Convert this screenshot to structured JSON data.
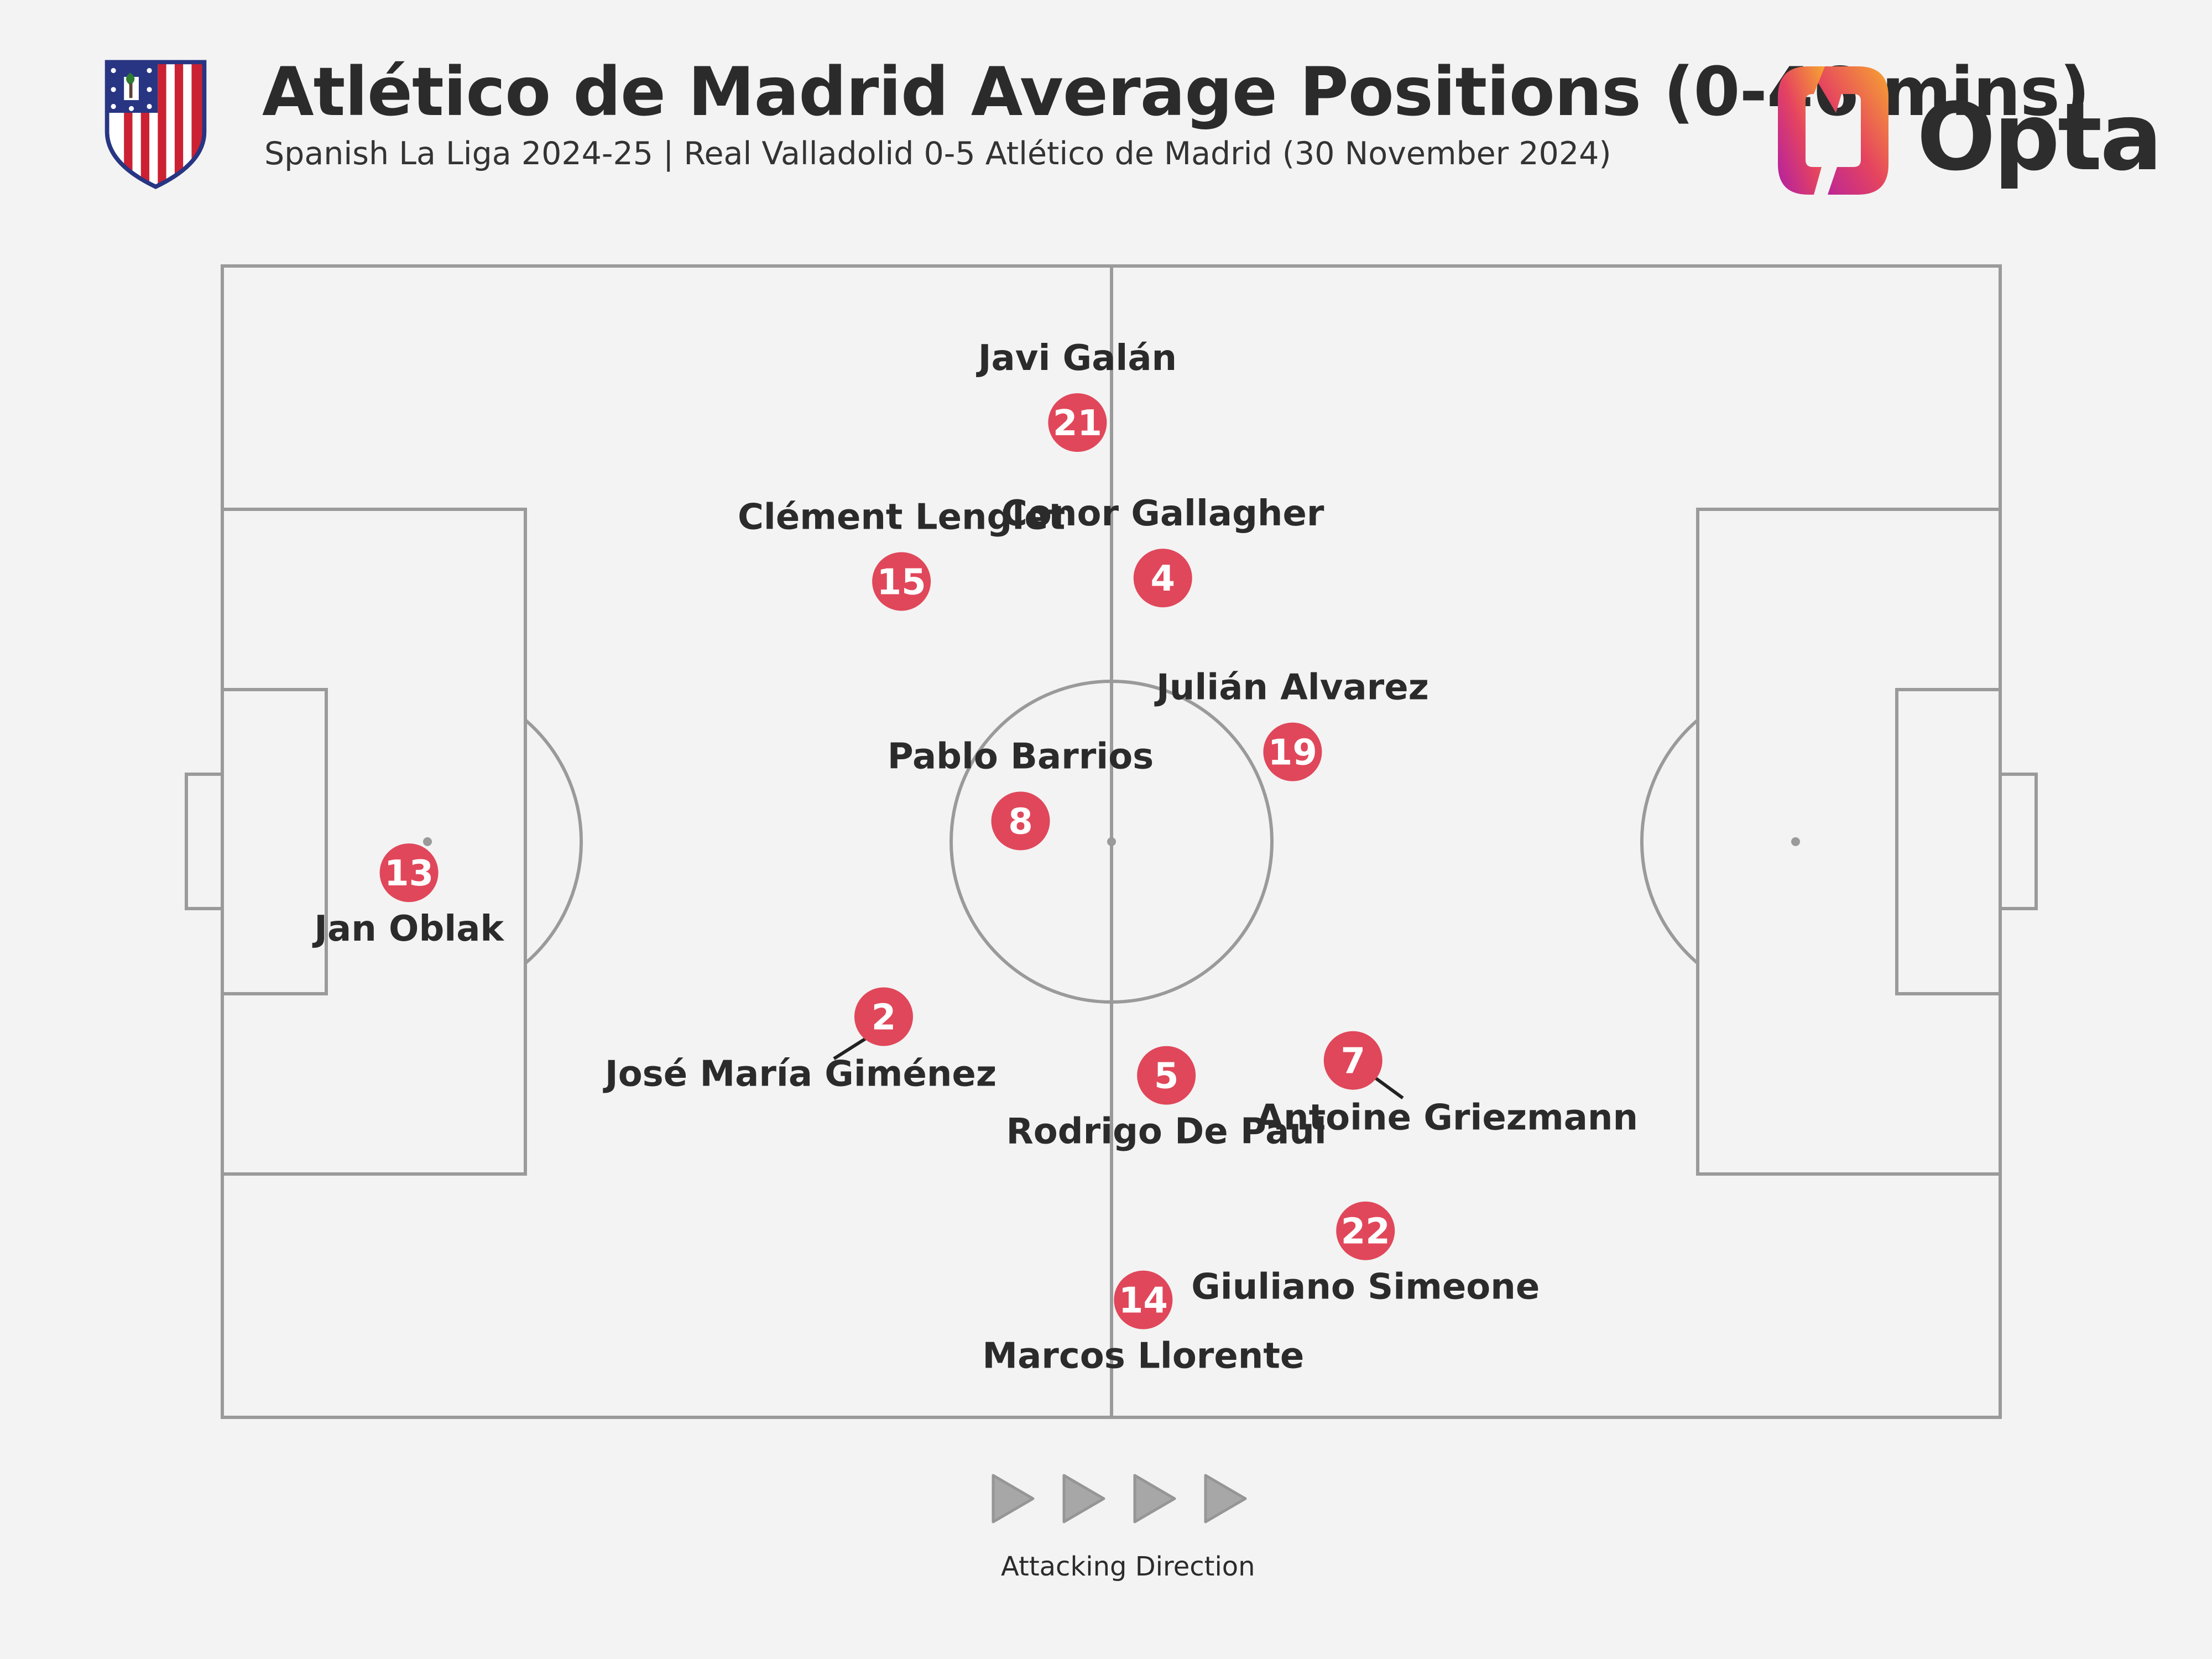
{
  "header": {
    "title": "Atlético de Madrid Average Positions (0-46 mins)",
    "subtitle": "Spanish La Liga 2024-25 | Real Valladolid 0-5 Atlético de Madrid (30 November 2024)",
    "brand": "Opta"
  },
  "footer": {
    "direction_label": "Attacking Direction",
    "arrow_icon": "play-triangle-icon"
  },
  "colors": {
    "background": "#f3f3f3",
    "pitch_lines": "#9a9a9a",
    "marker": "#e0475a",
    "text": "#2b2b2b",
    "crest_red": "#cb2133",
    "crest_blue": "#283583"
  },
  "chart_data": {
    "type": "scatter",
    "title": "Atlético de Madrid Average Positions (0-46 mins)",
    "xlim": [
      0,
      100
    ],
    "ylim": [
      0,
      100
    ],
    "grid": false,
    "players": [
      {
        "number": "21",
        "name": "Javi Galán",
        "x": 48.1,
        "y": 86.4,
        "label": "above"
      },
      {
        "number": "15",
        "name": "Clément Lenglet",
        "x": 38.2,
        "y": 72.6,
        "label": "above"
      },
      {
        "number": "4",
        "name": "Conor Gallagher",
        "x": 52.9,
        "y": 72.9,
        "label": "above"
      },
      {
        "number": "19",
        "name": "Julián Alvarez",
        "x": 60.2,
        "y": 57.8,
        "label": "above"
      },
      {
        "number": "8",
        "name": "Pablo Barrios",
        "x": 44.9,
        "y": 51.8,
        "label": "above"
      },
      {
        "number": "13",
        "name": "Jan Oblak",
        "x": 10.5,
        "y": 47.3,
        "label": "below"
      },
      {
        "number": "2",
        "name": "José María Giménez",
        "x": 37.2,
        "y": 34.8,
        "label": "below-left"
      },
      {
        "number": "5",
        "name": "Rodrigo De Paul",
        "x": 53.1,
        "y": 29.7,
        "label": "below"
      },
      {
        "number": "7",
        "name": "Antoine Griezmann",
        "x": 63.6,
        "y": 31.0,
        "label": "below-right"
      },
      {
        "number": "22",
        "name": "Giuliano Simeone",
        "x": 64.3,
        "y": 16.2,
        "label": "below"
      },
      {
        "number": "14",
        "name": "Marcos Llorente",
        "x": 51.8,
        "y": 10.2,
        "label": "below"
      }
    ]
  }
}
